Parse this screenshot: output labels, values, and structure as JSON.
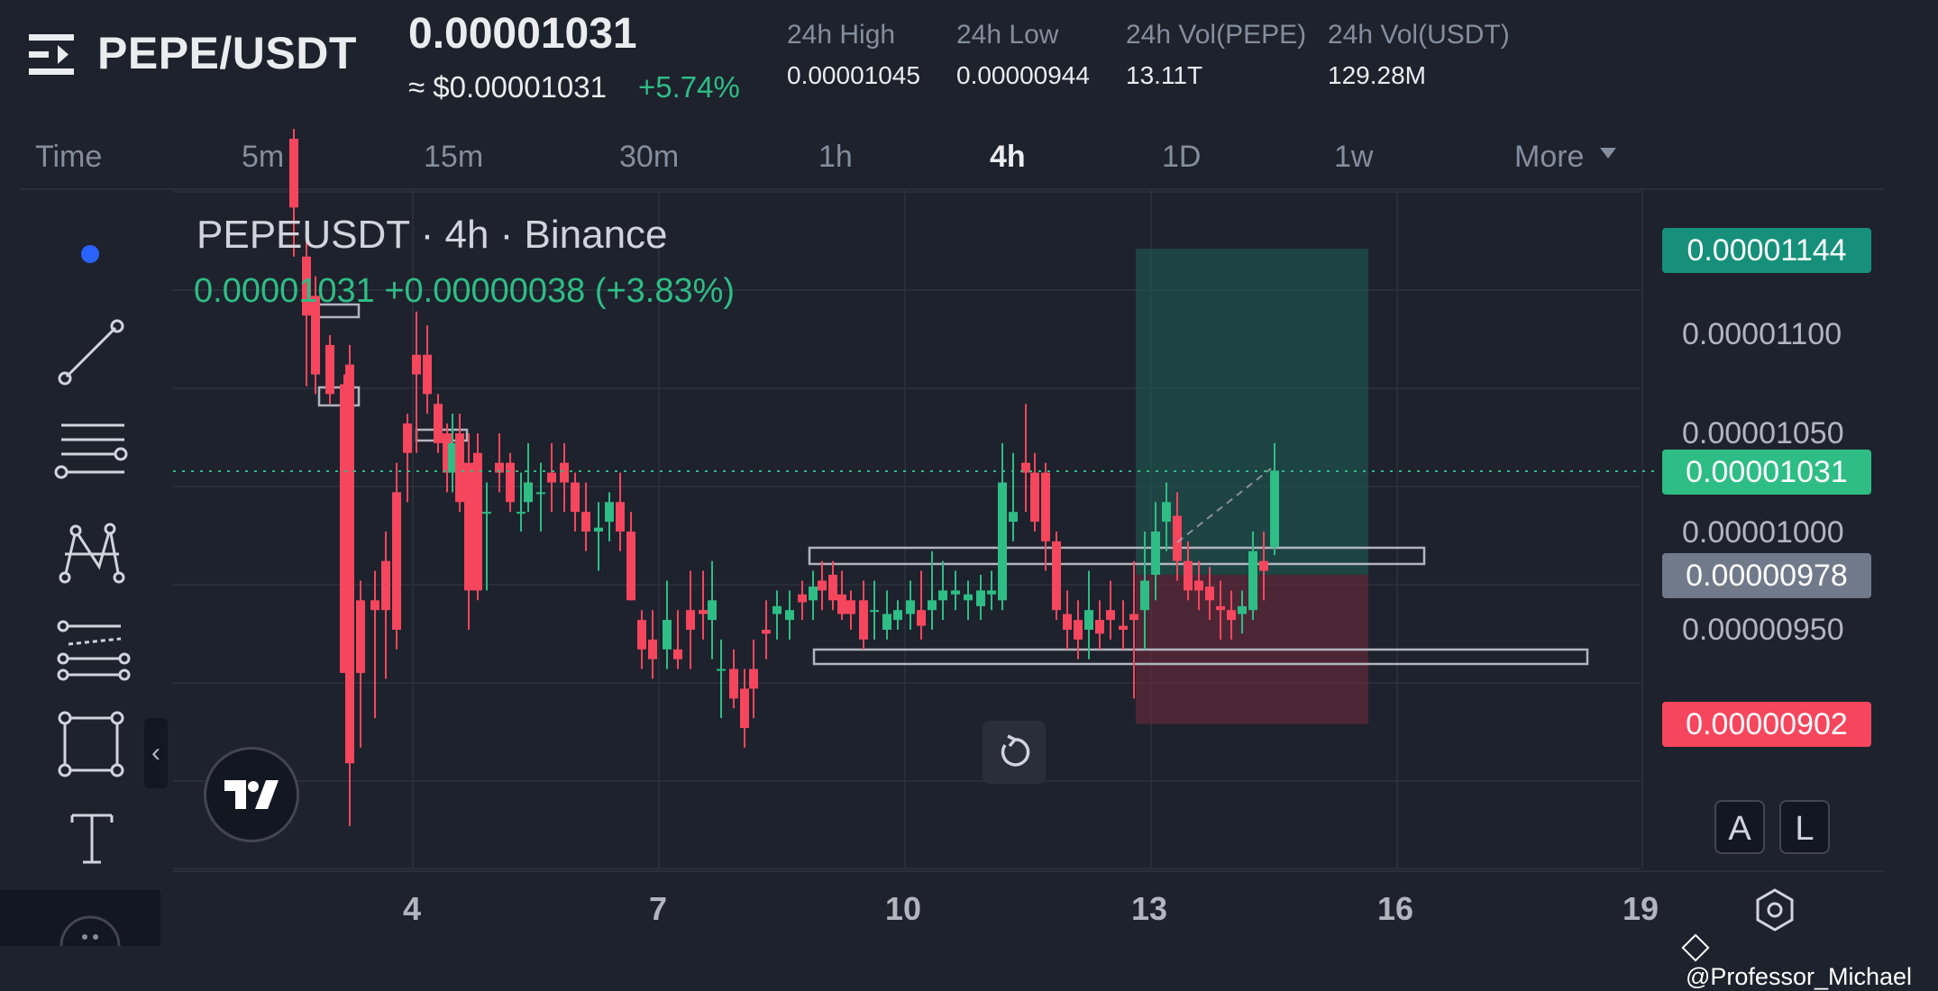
{
  "header": {
    "pair": "PEPE/USDT",
    "last_price": "0.00001031",
    "usd_price": "≈ $0.00001031",
    "change_pct": "+5.74%",
    "stats": [
      {
        "label": "24h High",
        "value": "0.00001045"
      },
      {
        "label": "24h Low",
        "value": "0.00000944"
      },
      {
        "label": "24h Vol(PEPE)",
        "value": "13.11T"
      },
      {
        "label": "24h Vol(USDT)",
        "value": "129.28M"
      }
    ]
  },
  "timeframes": {
    "time_label": "Time",
    "items": [
      "5m",
      "15m",
      "30m",
      "1h",
      "4h",
      "1D",
      "1w"
    ],
    "active": "4h",
    "more_label": "More"
  },
  "legend": {
    "title": "PEPEUSDT · 4h · Binance",
    "values": "0.00001031  +0.00000038 (+3.83%)"
  },
  "price_axis": {
    "labels": [
      "0.00001100",
      "0.00001050",
      "0.00001000",
      "0.00000950"
    ],
    "tag_target": "0.00001144",
    "tag_current": "0.00001031",
    "tag_entry": "0.00000978",
    "tag_stop": "0.00000902"
  },
  "x_axis": [
    "4",
    "7",
    "10",
    "13",
    "16",
    "19"
  ],
  "controls": {
    "auto_label": "A",
    "log_label": "L"
  },
  "watermark": "@Professor_Michael",
  "colors": {
    "background": "#1e222d",
    "up": "#2ebd85",
    "down": "#f6465d",
    "entry_tag": "#707a8a"
  }
}
